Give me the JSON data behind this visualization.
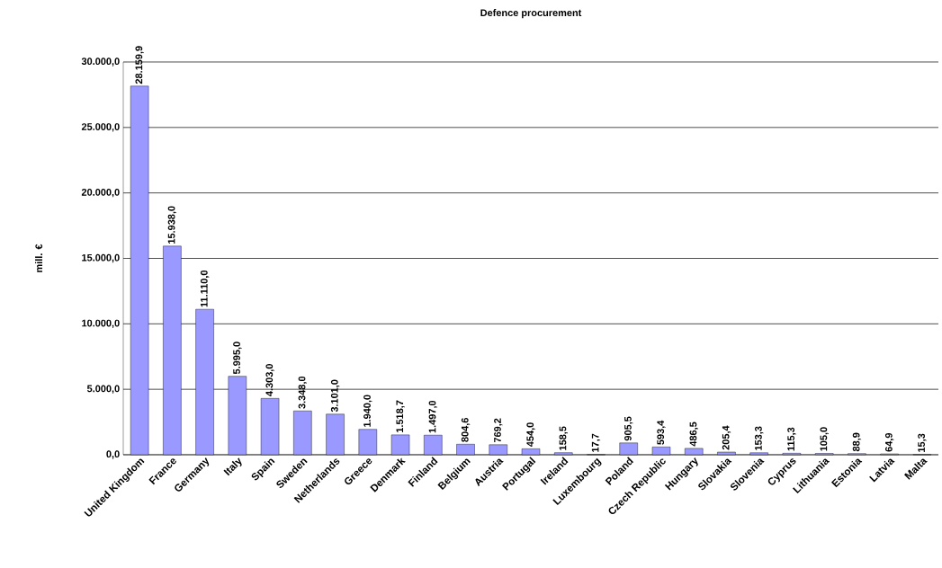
{
  "chart_data": {
    "type": "bar",
    "title": "Defence procurement",
    "ylabel": "mill. €",
    "categories": [
      "United Kingdom",
      "France",
      "Germany",
      "Italy",
      "Spain",
      "Sweden",
      "Netherlands",
      "Greece",
      "Denmark",
      "Finland",
      "Belgium",
      "Austria",
      "Portugal",
      "Ireland",
      "Luxembourg",
      "Poland",
      "Czech Republic",
      "Hungary",
      "Slovakia",
      "Slovenia",
      "Cyprus",
      "Lithuania",
      "Estonia",
      "Latvia",
      "Malta"
    ],
    "values": [
      28159.9,
      15938.0,
      11110.0,
      5995.0,
      4303.0,
      3348.0,
      3101.0,
      1940.0,
      1518.7,
      1497.0,
      804.6,
      769.2,
      454.0,
      158.5,
      17.7,
      905.5,
      593.4,
      486.5,
      205.4,
      153.3,
      115.3,
      105.0,
      88.9,
      64.9,
      15.3
    ],
    "value_labels": [
      "28.159,9",
      "15.938,0",
      "11.110,0",
      "5.995,0",
      "4.303,0",
      "3.348,0",
      "3.101,0",
      "1.940,0",
      "1.518,7",
      "1.497,0",
      "804,6",
      "769,2",
      "454,0",
      "158,5",
      "17,7",
      "905,5",
      "593,4",
      "486,5",
      "205,4",
      "153,3",
      "115,3",
      "105,0",
      "88,9",
      "64,9",
      "15,3"
    ],
    "color": "#9999ff",
    "ylim": [
      0,
      30000
    ],
    "yticks": [
      {
        "value": 0,
        "label": "0,0"
      },
      {
        "value": 5000,
        "label": "5.000,0"
      },
      {
        "value": 10000,
        "label": "10.000,0"
      },
      {
        "value": 15000,
        "label": "15.000,0"
      },
      {
        "value": 20000,
        "label": "20.000,0"
      },
      {
        "value": 25000,
        "label": "25.000,0"
      },
      {
        "value": 30000,
        "label": "30.000,0"
      }
    ],
    "grid": "y"
  }
}
